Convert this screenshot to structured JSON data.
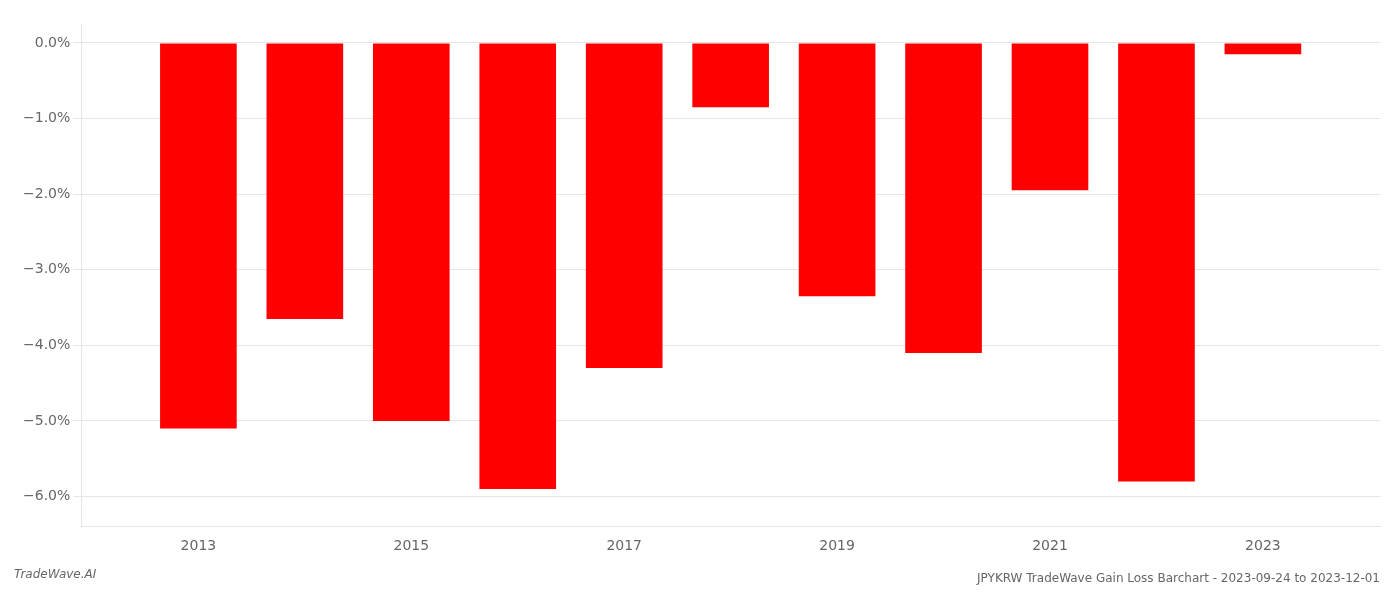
{
  "chart_data": {
    "type": "bar",
    "title": "JPYKRW TradeWave Gain Loss Barchart - 2023-09-24 to 2023-12-01",
    "annotations": [
      "TradeWave.AI"
    ],
    "x": [
      2013,
      2014,
      2015,
      2016,
      2017,
      2018,
      2019,
      2020,
      2021,
      2022,
      2023
    ],
    "values": [
      -5.1,
      -3.65,
      -5.0,
      -5.9,
      -4.3,
      -0.85,
      -3.35,
      -4.1,
      -1.95,
      -5.8,
      -0.15
    ],
    "color": "#ff0000",
    "xlim": [
      2011.9,
      2024.1
    ],
    "xticks": [
      2013,
      2015,
      2017,
      2019,
      2021,
      2023
    ],
    "ylim": [
      -6.4,
      0.25
    ],
    "yticks": [
      {
        "value": 0,
        "label": "0.0%"
      },
      {
        "value": -1,
        "label": "−1.0%"
      },
      {
        "value": -2,
        "label": "−2.0%"
      },
      {
        "value": -3,
        "label": "−3.0%"
      },
      {
        "value": -4,
        "label": "−4.0%"
      },
      {
        "value": -5,
        "label": "−5.0%"
      },
      {
        "value": -6,
        "label": "−6.0%"
      }
    ],
    "grid": true
  }
}
